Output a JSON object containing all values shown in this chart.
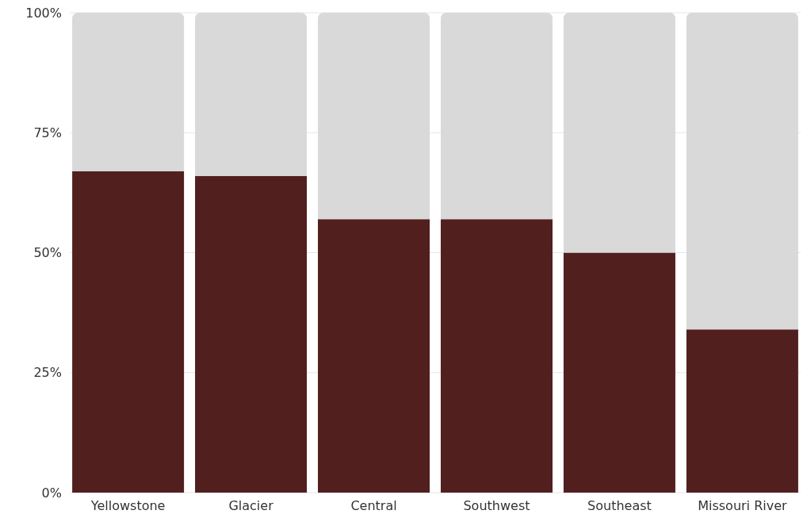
{
  "chart_data": {
    "type": "bar",
    "stacked": true,
    "categories": [
      "Yellowstone",
      "Glacier",
      "Central",
      "Southwest",
      "Southeast",
      "Missouri River"
    ],
    "series": [
      {
        "color": "#521f1f",
        "values": [
          67,
          66,
          57,
          57,
          50,
          34
        ]
      },
      {
        "color": "#d9d9d9",
        "values": [
          33,
          34,
          43,
          43,
          50,
          66
        ]
      }
    ],
    "ylim": [
      0,
      100
    ],
    "yticks": [
      {
        "value": 0,
        "label": "0%"
      },
      {
        "value": 25,
        "label": "25%"
      },
      {
        "value": 50,
        "label": "50%"
      },
      {
        "value": 75,
        "label": "75%"
      },
      {
        "value": 100,
        "label": "100%"
      }
    ],
    "grid": "y"
  }
}
